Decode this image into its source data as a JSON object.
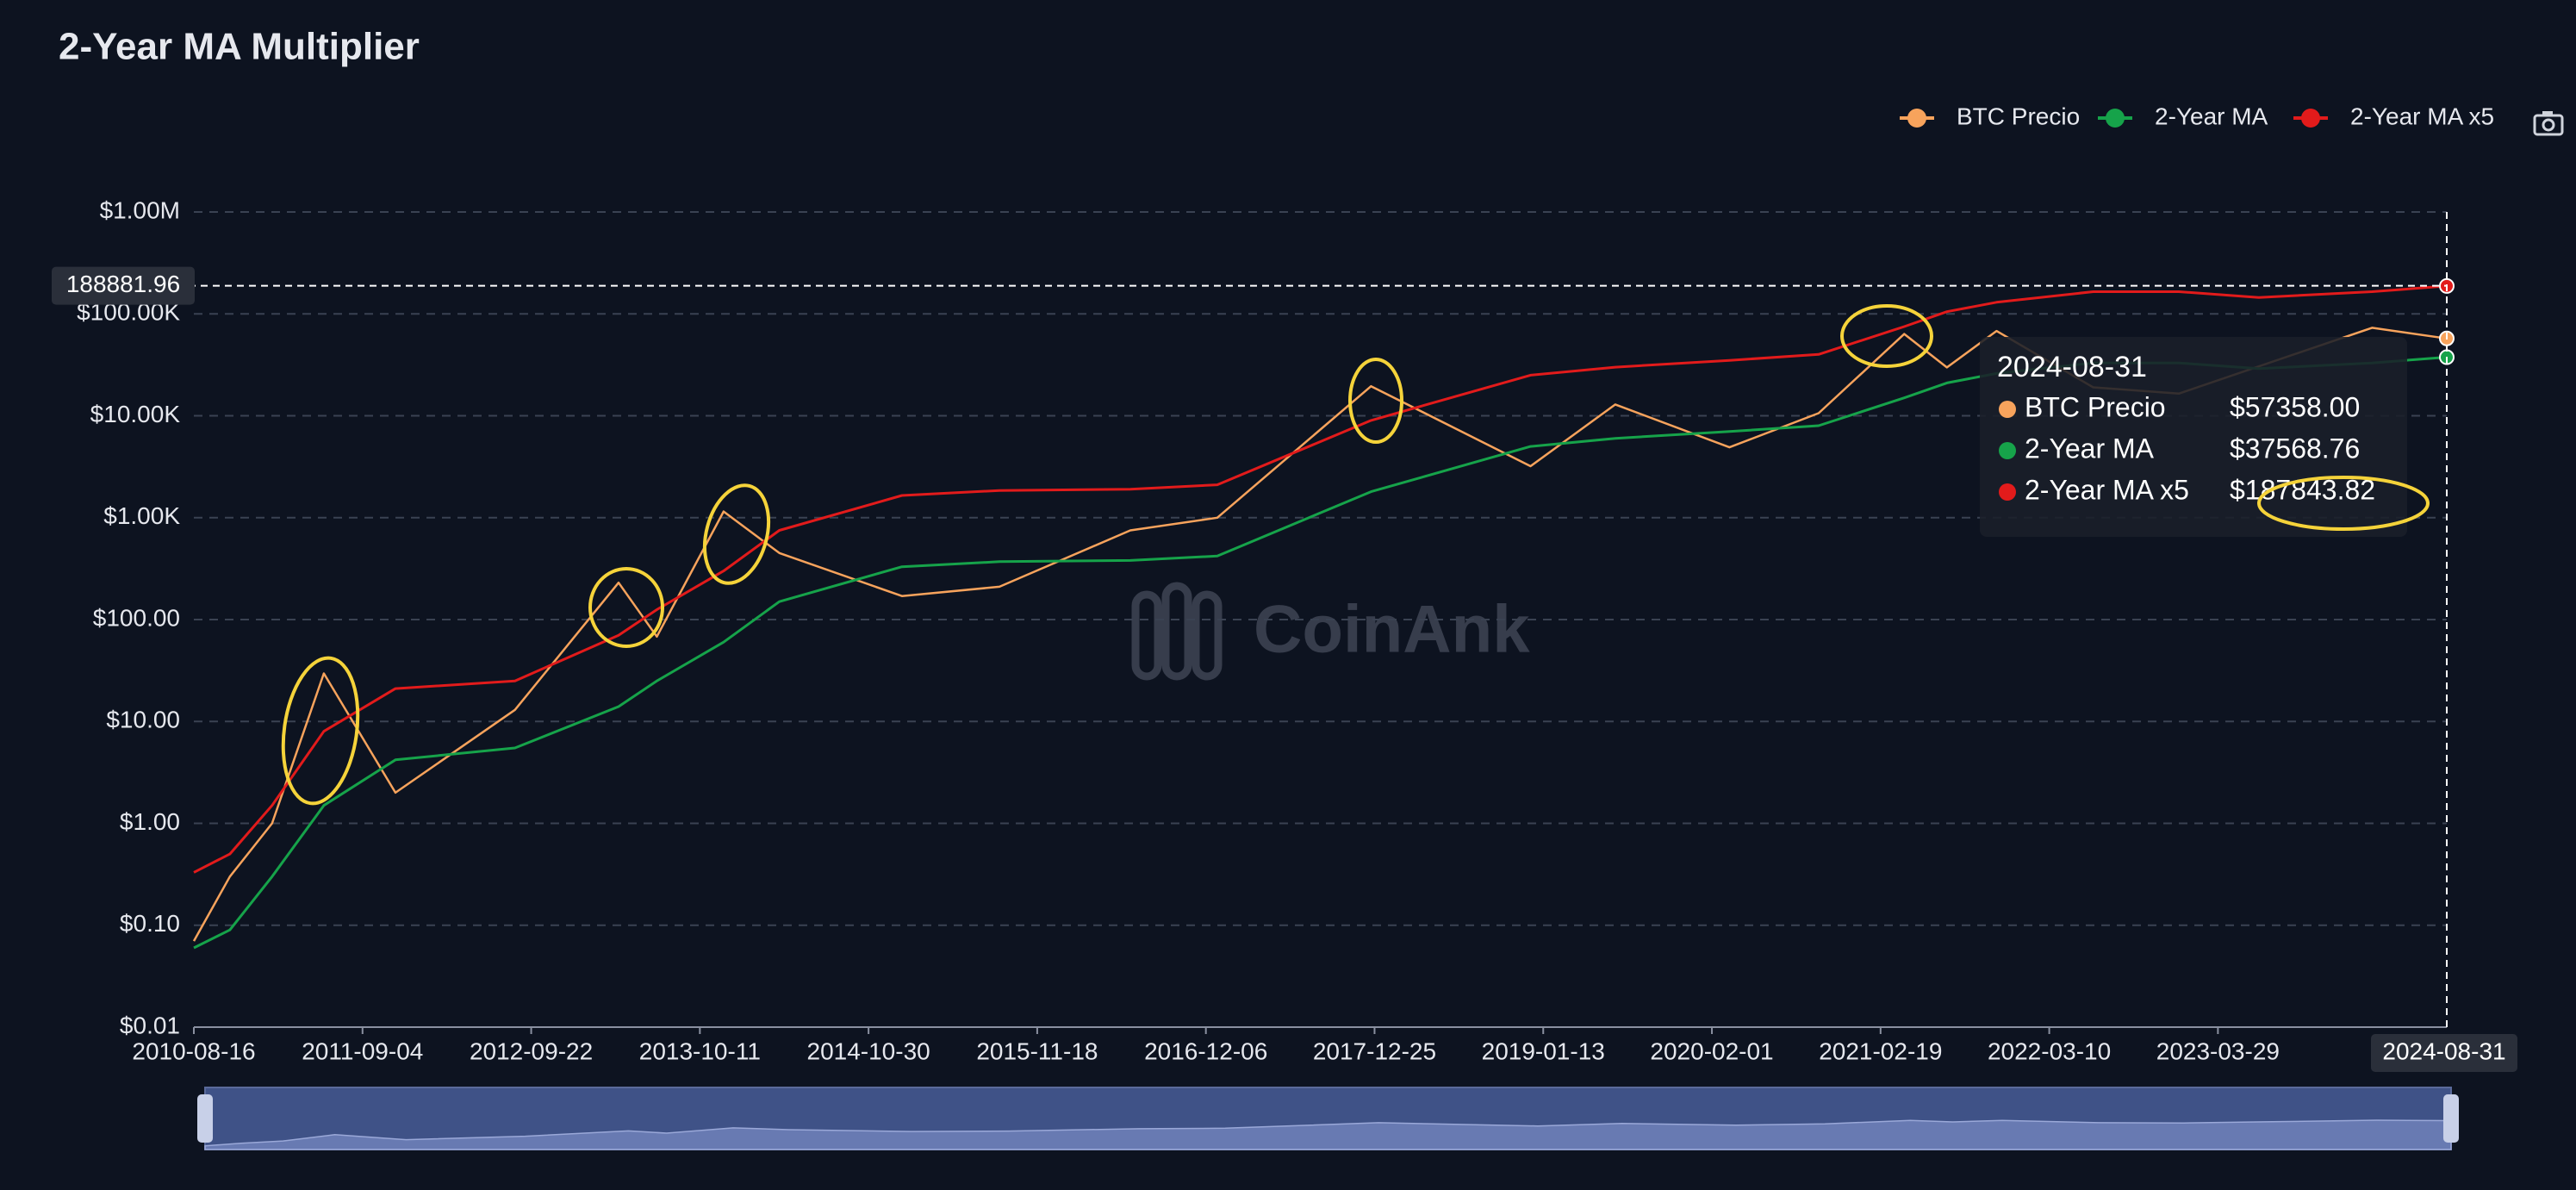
{
  "chart_data": {
    "type": "line",
    "title": "2-Year MA Multiplier",
    "watermark": "CoinAnk",
    "log_y": true,
    "grid": true,
    "legend": "top-right",
    "x": [
      "2010-08-16",
      "2010-11-06",
      "2011-02-10",
      "2011-06-08",
      "2011-11-18",
      "2012-08-16",
      "2013-04-09",
      "2013-07-05",
      "2013-12-04",
      "2014-04-10",
      "2015-01-14",
      "2015-08-24",
      "2016-06-17",
      "2017-01-01",
      "2017-12-17",
      "2018-12-15",
      "2019-06-26",
      "2020-03-12",
      "2020-10-01",
      "2021-04-14",
      "2021-07-20",
      "2021-11-10",
      "2022-06-18",
      "2022-12-30",
      "2023-06-30",
      "2024-03-14",
      "2024-08-31"
    ],
    "series": [
      {
        "name": "BTC Precio",
        "color": "#f7a35c",
        "values": [
          0.07,
          0.3,
          1.0,
          29.6,
          2.0,
          13,
          230,
          68,
          1150,
          450,
          170,
          210,
          750,
          1000,
          19500,
          3200,
          12900,
          4900,
          10600,
          63500,
          29800,
          68000,
          19000,
          16500,
          30500,
          73000,
          57358
        ]
      },
      {
        "name": "2-Year MA",
        "color": "#16a34a",
        "values": [
          0.06,
          0.09,
          0.3,
          1.5,
          4.2,
          5.5,
          14,
          25,
          60,
          150,
          330,
          370,
          380,
          420,
          1800,
          5000,
          6000,
          7000,
          8000,
          15000,
          21000,
          26000,
          33000,
          33000,
          29000,
          33000,
          37568.76
        ]
      },
      {
        "name": "2-Year MA x5",
        "color": "#e21b1b",
        "values": [
          0.33,
          0.5,
          1.5,
          8,
          21,
          25,
          70,
          125,
          300,
          750,
          1650,
          1850,
          1900,
          2100,
          9000,
          25000,
          30000,
          35000,
          40000,
          75000,
          105000,
          130000,
          165000,
          165000,
          145000,
          165000,
          187843.82
        ]
      }
    ],
    "xlim": [
      "2010-08-16",
      "2024-08-31"
    ],
    "xticks": [
      "2010-08-16",
      "2011-09-04",
      "2012-09-22",
      "2013-10-11",
      "2014-10-30",
      "2015-11-18",
      "2016-12-06",
      "2017-12-25",
      "2019-01-13",
      "2020-02-01",
      "2021-02-19",
      "2022-03-10",
      "2023-03-29"
    ],
    "ylim": [
      0.01,
      1000000
    ],
    "yticks": [
      {
        "value": 0.01,
        "label": "$0.01"
      },
      {
        "value": 0.1,
        "label": "$0.10"
      },
      {
        "value": 1,
        "label": "$1.00"
      },
      {
        "value": 10,
        "label": "$10.00"
      },
      {
        "value": 100,
        "label": "$100.00"
      },
      {
        "value": 1000,
        "label": "$1.00K"
      },
      {
        "value": 10000,
        "label": "$10.00K"
      },
      {
        "value": 100000,
        "label": "$100.00K"
      },
      {
        "value": 1000000,
        "label": "$1.00M"
      }
    ],
    "crosshair_y": 188881.96,
    "tooltip": {
      "x": "2024-08-31",
      "labels": [
        "$57358.00",
        "$37568.76",
        "$187843.82"
      ]
    }
  }
}
